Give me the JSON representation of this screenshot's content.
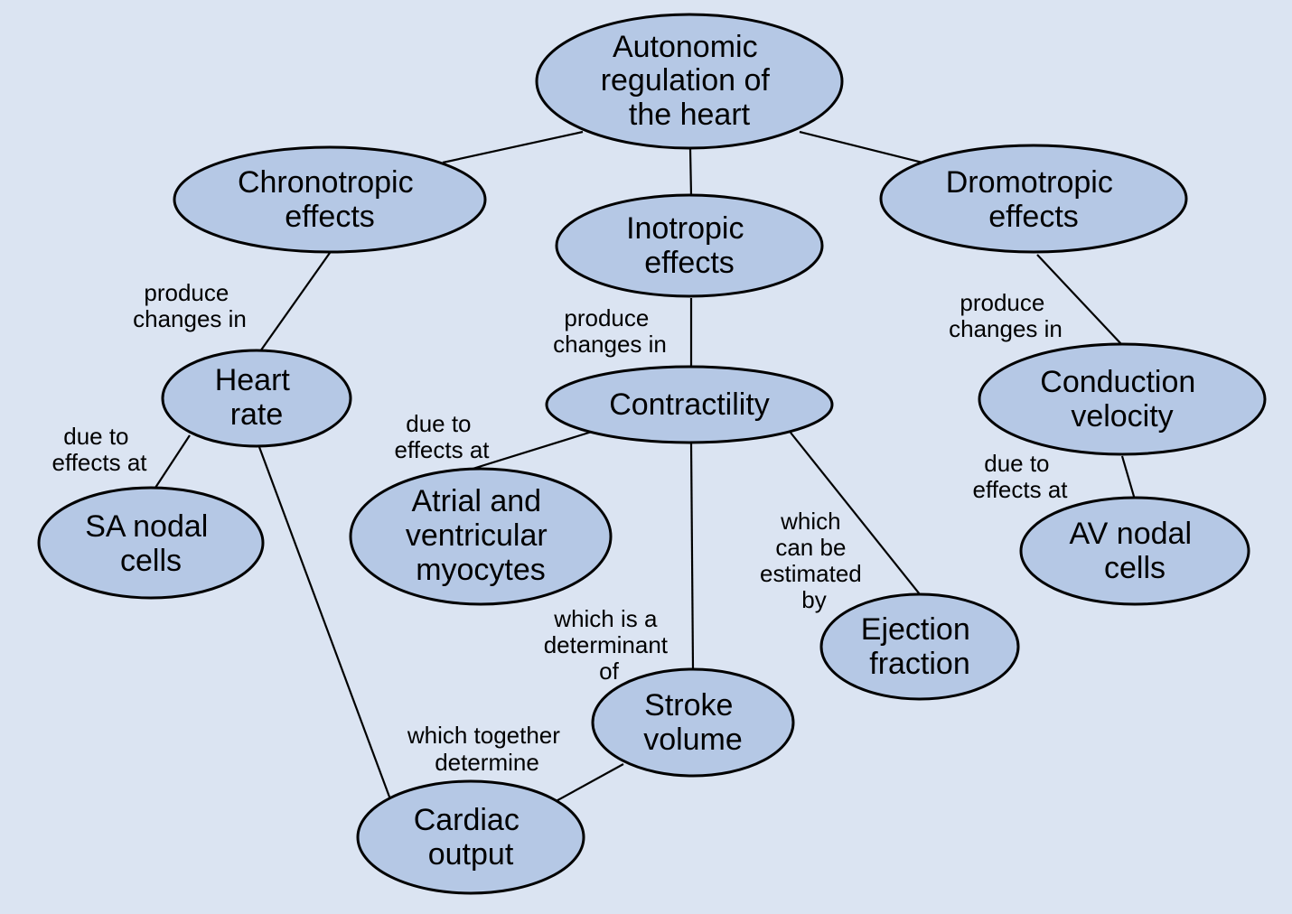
{
  "colors": {
    "background": "#dbe4f2",
    "node_fill": "#b5c8e5",
    "stroke": "#000000"
  },
  "nodes": {
    "root": [
      "Autonomic",
      "regulation of",
      "the heart"
    ],
    "chronotropic": [
      "Chronotropic",
      "effects"
    ],
    "inotropic": [
      "Inotropic",
      "effects"
    ],
    "dromotropic": [
      "Dromotropic",
      "effects"
    ],
    "heart_rate": [
      "Heart",
      "rate"
    ],
    "contractility": [
      "Contractility"
    ],
    "conduction": [
      "Conduction",
      "velocity"
    ],
    "sa_nodal": [
      "SA nodal",
      "cells"
    ],
    "myocytes": [
      "Atrial and",
      "ventricular",
      "myocytes"
    ],
    "av_nodal": [
      "AV nodal",
      "cells"
    ],
    "ejection": [
      "Ejection",
      "fraction"
    ],
    "stroke": [
      "Stroke",
      "volume"
    ],
    "cardiac": [
      "Cardiac",
      "output"
    ]
  },
  "edge_labels": {
    "chrono_hr": [
      "produce",
      "changes in"
    ],
    "ino_contr": [
      "produce",
      "changes in"
    ],
    "dromo_cond": [
      "produce",
      "changes in"
    ],
    "hr_sa": [
      "due to",
      "effects at"
    ],
    "contr_myo": [
      "due to",
      "effects at"
    ],
    "cond_av": [
      "due to",
      "effects at"
    ],
    "contr_ef": [
      "which",
      "can be",
      "estimated",
      "by"
    ],
    "contr_sv": [
      "which is a",
      "determinant",
      "of"
    ],
    "sv_co": [
      "which together",
      "determine"
    ]
  }
}
